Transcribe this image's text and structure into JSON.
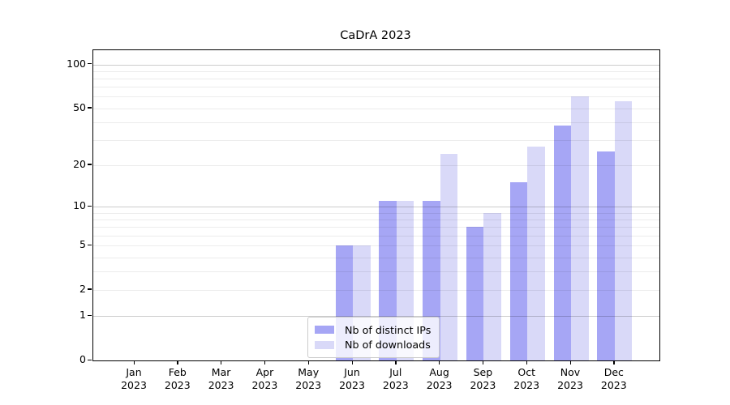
{
  "title": "CaDrA 2023",
  "chart_data": {
    "type": "bar",
    "title": "CaDrA 2023",
    "categories": [
      "Jan 2023",
      "Feb 2023",
      "Mar 2023",
      "Apr 2023",
      "May 2023",
      "Jun 2023",
      "Jul 2023",
      "Aug 2023",
      "Sep 2023",
      "Oct 2023",
      "Nov 2023",
      "Dec 2023"
    ],
    "series": [
      {
        "name": "Nb of distinct IPs",
        "color": "#a6a6f5",
        "values": [
          0,
          0,
          0,
          0,
          0,
          5,
          11,
          11,
          7,
          15,
          38,
          25
        ]
      },
      {
        "name": "Nb of downloads",
        "color": "#d9d9f8",
        "values": [
          0,
          0,
          0,
          0,
          0,
          5,
          11,
          24,
          9,
          27,
          60,
          56
        ]
      }
    ],
    "xlabel": "",
    "ylabel": "",
    "yscale": "log1p",
    "ylim": [
      0,
      125
    ],
    "y_ticks": [
      0,
      1,
      2,
      5,
      10,
      20,
      50,
      100
    ],
    "y_tick_labels": [
      "0",
      "1",
      "2",
      "5",
      "10",
      "20",
      "50",
      "100"
    ],
    "y_gridlines_minor": [
      2,
      3,
      4,
      5,
      6,
      7,
      8,
      9,
      20,
      30,
      40,
      50,
      60,
      70,
      80,
      90
    ],
    "y_gridlines_major": [
      1,
      10,
      100
    ],
    "grid": true,
    "legend_position": "lower center"
  },
  "colors": {
    "background": "#ffffff",
    "bar_dark": "#a6a6f5",
    "bar_light": "#d9d9f8",
    "axis": "#000000",
    "grid_minor": "#ececec",
    "grid_major": "#c9c9c9",
    "legend_border": "#cccccc"
  }
}
